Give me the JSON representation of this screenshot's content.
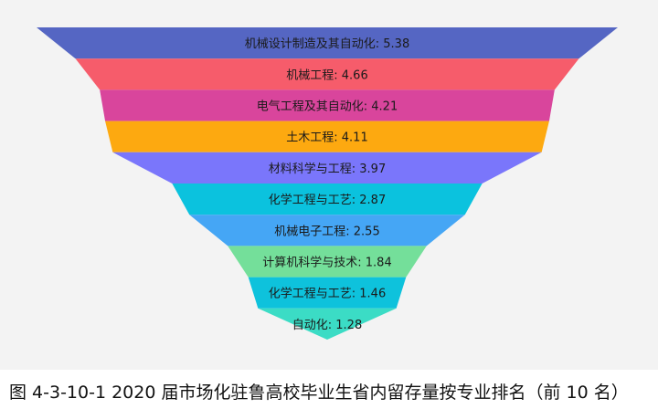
{
  "chart_data": {
    "type": "funnel",
    "title": "",
    "categories": [
      "机械设计制造及其自动化",
      "机械工程",
      "电气工程及其自动化",
      "土木工程",
      "材料科学与工程",
      "化学工程与工艺",
      "机械电子工程",
      "计算机科学与技术",
      "化学工程与工艺",
      "自动化"
    ],
    "values": [
      5.38,
      4.66,
      4.21,
      4.11,
      3.97,
      2.87,
      2.55,
      1.84,
      1.46,
      1.28
    ],
    "labels": [
      "机械设计制造及其自动化: 5.38",
      "机械工程: 4.66",
      "电气工程及其自动化: 4.21",
      "土木工程: 4.11",
      "材料科学与工程: 3.97",
      "化学工程与工艺: 2.87",
      "机械电子工程: 2.55",
      "计算机科学与技术: 1.84",
      "化学工程与工艺: 1.46",
      "自动化: 1.28"
    ],
    "colors": [
      "#5566c3",
      "#f65c6b",
      "#d9459c",
      "#fda910",
      "#7a76fb",
      "#0bc2de",
      "#45a6f5",
      "#74df9a",
      "#0ec2dc",
      "#3bdcc5"
    ],
    "legend": "none",
    "grid": false
  },
  "caption": "图 4-3-10-1  2020 届市场化驻鲁高校毕业生省内留存量按专业排名（前 10 名）"
}
